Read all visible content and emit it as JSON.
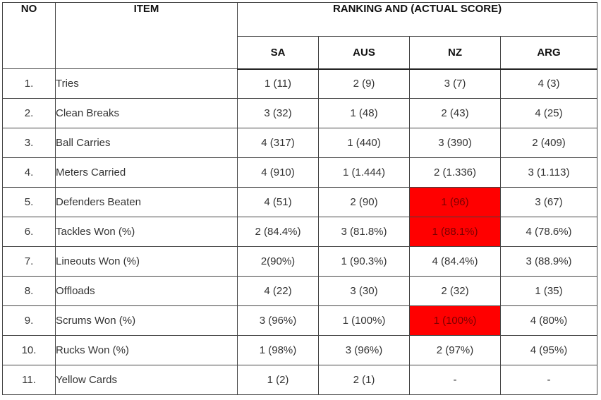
{
  "headers": {
    "no": "NO",
    "item": "ITEM",
    "group": "RANKING AND (ACTUAL SCORE)",
    "teams": [
      "SA",
      "AUS",
      "NZ",
      "ARG"
    ]
  },
  "rows": [
    {
      "no": "1.",
      "item": "Tries",
      "values": [
        "1 (11)",
        "2 (9)",
        "3 (7)",
        "4 (3)"
      ]
    },
    {
      "no": "2.",
      "item": "Clean Breaks",
      "values": [
        "3 (32)",
        "1 (48)",
        "2 (43)",
        "4 (25)"
      ]
    },
    {
      "no": "3.",
      "item": "Ball Carries",
      "values": [
        "4 (317)",
        "1 (440)",
        "3 (390)",
        "2 (409)"
      ]
    },
    {
      "no": "4.",
      "item": "Meters Carried",
      "values": [
        "4 (910)",
        "1 (1.444)",
        "2 (1.336)",
        "3 (1.113)"
      ]
    },
    {
      "no": "5.",
      "item": "Defenders Beaten",
      "values": [
        "4 (51)",
        "2 (90)",
        "1 (96)",
        "3 (67)"
      ]
    },
    {
      "no": "6.",
      "item": "Tackles Won (%)",
      "values": [
        "2 (84.4%)",
        "3 (81.8%)",
        "1 (88.1%)",
        "4 (78.6%)"
      ]
    },
    {
      "no": "7.",
      "item": "Lineouts Won (%)",
      "values": [
        "2(90%)",
        "1 (90.3%)",
        "4 (84.4%)",
        "3 (88.9%)"
      ]
    },
    {
      "no": "8.",
      "item": "Offloads",
      "values": [
        "4 (22)",
        "3 (30)",
        "2 (32)",
        "1 (35)"
      ]
    },
    {
      "no": "9.",
      "item": "Scrums Won (%)",
      "values": [
        "3 (96%)",
        "1 (100%)",
        "1 (100%)",
        "4 (80%)"
      ]
    },
    {
      "no": "10.",
      "item": "Rucks Won (%)",
      "values": [
        "1 (98%)",
        "3 (96%)",
        "2 (97%)",
        "4 (95%)"
      ]
    },
    {
      "no": "11.",
      "item": "Yellow Cards",
      "values": [
        "1 (2)",
        "2 (1)",
        "-",
        "-"
      ]
    }
  ],
  "highlight_color": "#ff0000"
}
